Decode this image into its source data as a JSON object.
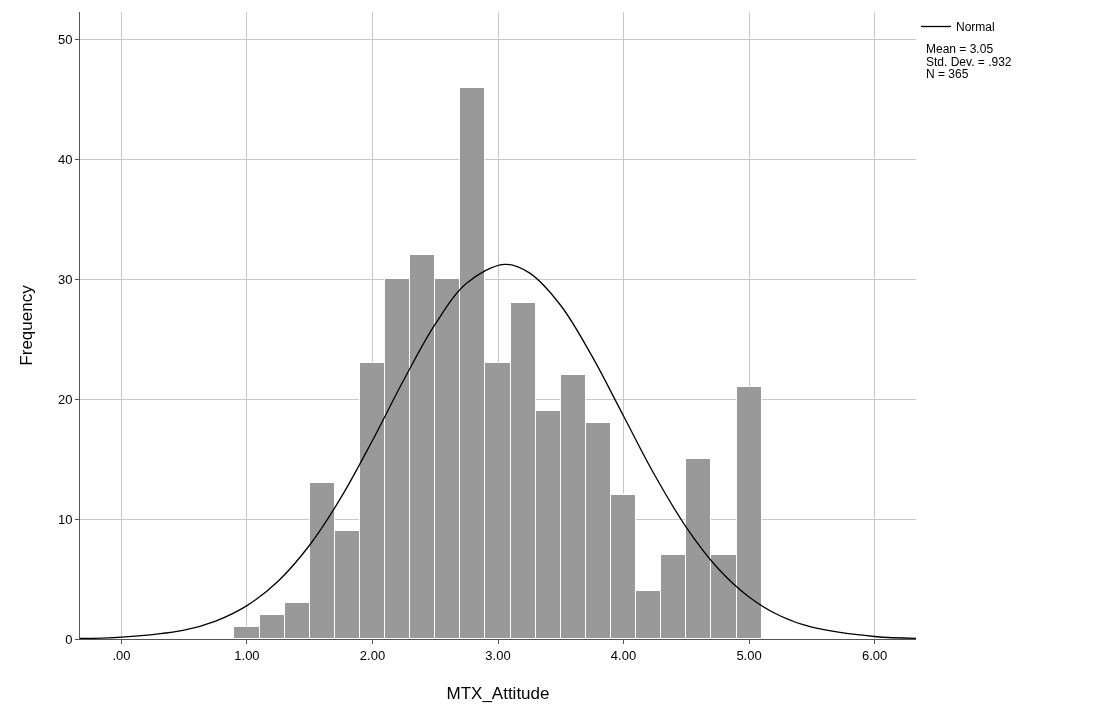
{
  "chart_data": {
    "type": "histogram",
    "xlabel": "MTX_Attitude",
    "ylabel": "Frequency",
    "bins": [
      0.9,
      1.1,
      1.3,
      1.5,
      1.7,
      1.9,
      2.1,
      2.3,
      2.5,
      2.7,
      2.9,
      3.1,
      3.3,
      3.5,
      3.7,
      3.9,
      4.1,
      4.3,
      4.5,
      4.7,
      4.9,
      5.1
    ],
    "values": [
      1,
      2,
      3,
      13,
      9,
      23,
      30,
      32,
      30,
      46,
      23,
      28,
      19,
      22,
      18,
      12,
      4,
      7,
      15,
      7,
      21
    ],
    "color": "#999999",
    "series": [
      {
        "type": "line",
        "name": "Normal",
        "color": "#000000",
        "x": [
          -0.33,
          0.0,
          0.5,
          0.75,
          1.0,
          1.25,
          1.5,
          1.75,
          2.0,
          2.25,
          2.5,
          2.75,
          3.05,
          3.25,
          3.5,
          3.75,
          4.0,
          4.25,
          4.5,
          4.75,
          5.0,
          5.25,
          5.5,
          6.0,
          6.33
        ],
        "values": [
          0.04,
          0.15,
          0.74,
          1.49,
          2.78,
          4.84,
          7.84,
          11.81,
          16.56,
          21.62,
          26.26,
          29.67,
          31.25,
          30.54,
          27.82,
          23.57,
          18.6,
          13.64,
          9.32,
          5.92,
          3.5,
          1.92,
          0.99,
          0.21,
          0.06
        ]
      }
    ],
    "annotations": [
      "Mean = 3.05",
      "Std. Dev. = .932",
      "N = 365"
    ],
    "xlim": [
      -0.33,
      6.33
    ],
    "xticks": [
      {
        "value": 0,
        "label": ".00"
      },
      {
        "value": 1,
        "label": "1.00"
      },
      {
        "value": 2,
        "label": "2.00"
      },
      {
        "value": 3,
        "label": "3.00"
      },
      {
        "value": 4,
        "label": "4.00"
      },
      {
        "value": 5,
        "label": "5.00"
      },
      {
        "value": 6,
        "label": "6.00"
      }
    ],
    "ylim": [
      0,
      52.3
    ],
    "yticks": [
      0,
      10,
      20,
      30,
      40,
      50
    ],
    "grid": true,
    "legend": "top right"
  }
}
